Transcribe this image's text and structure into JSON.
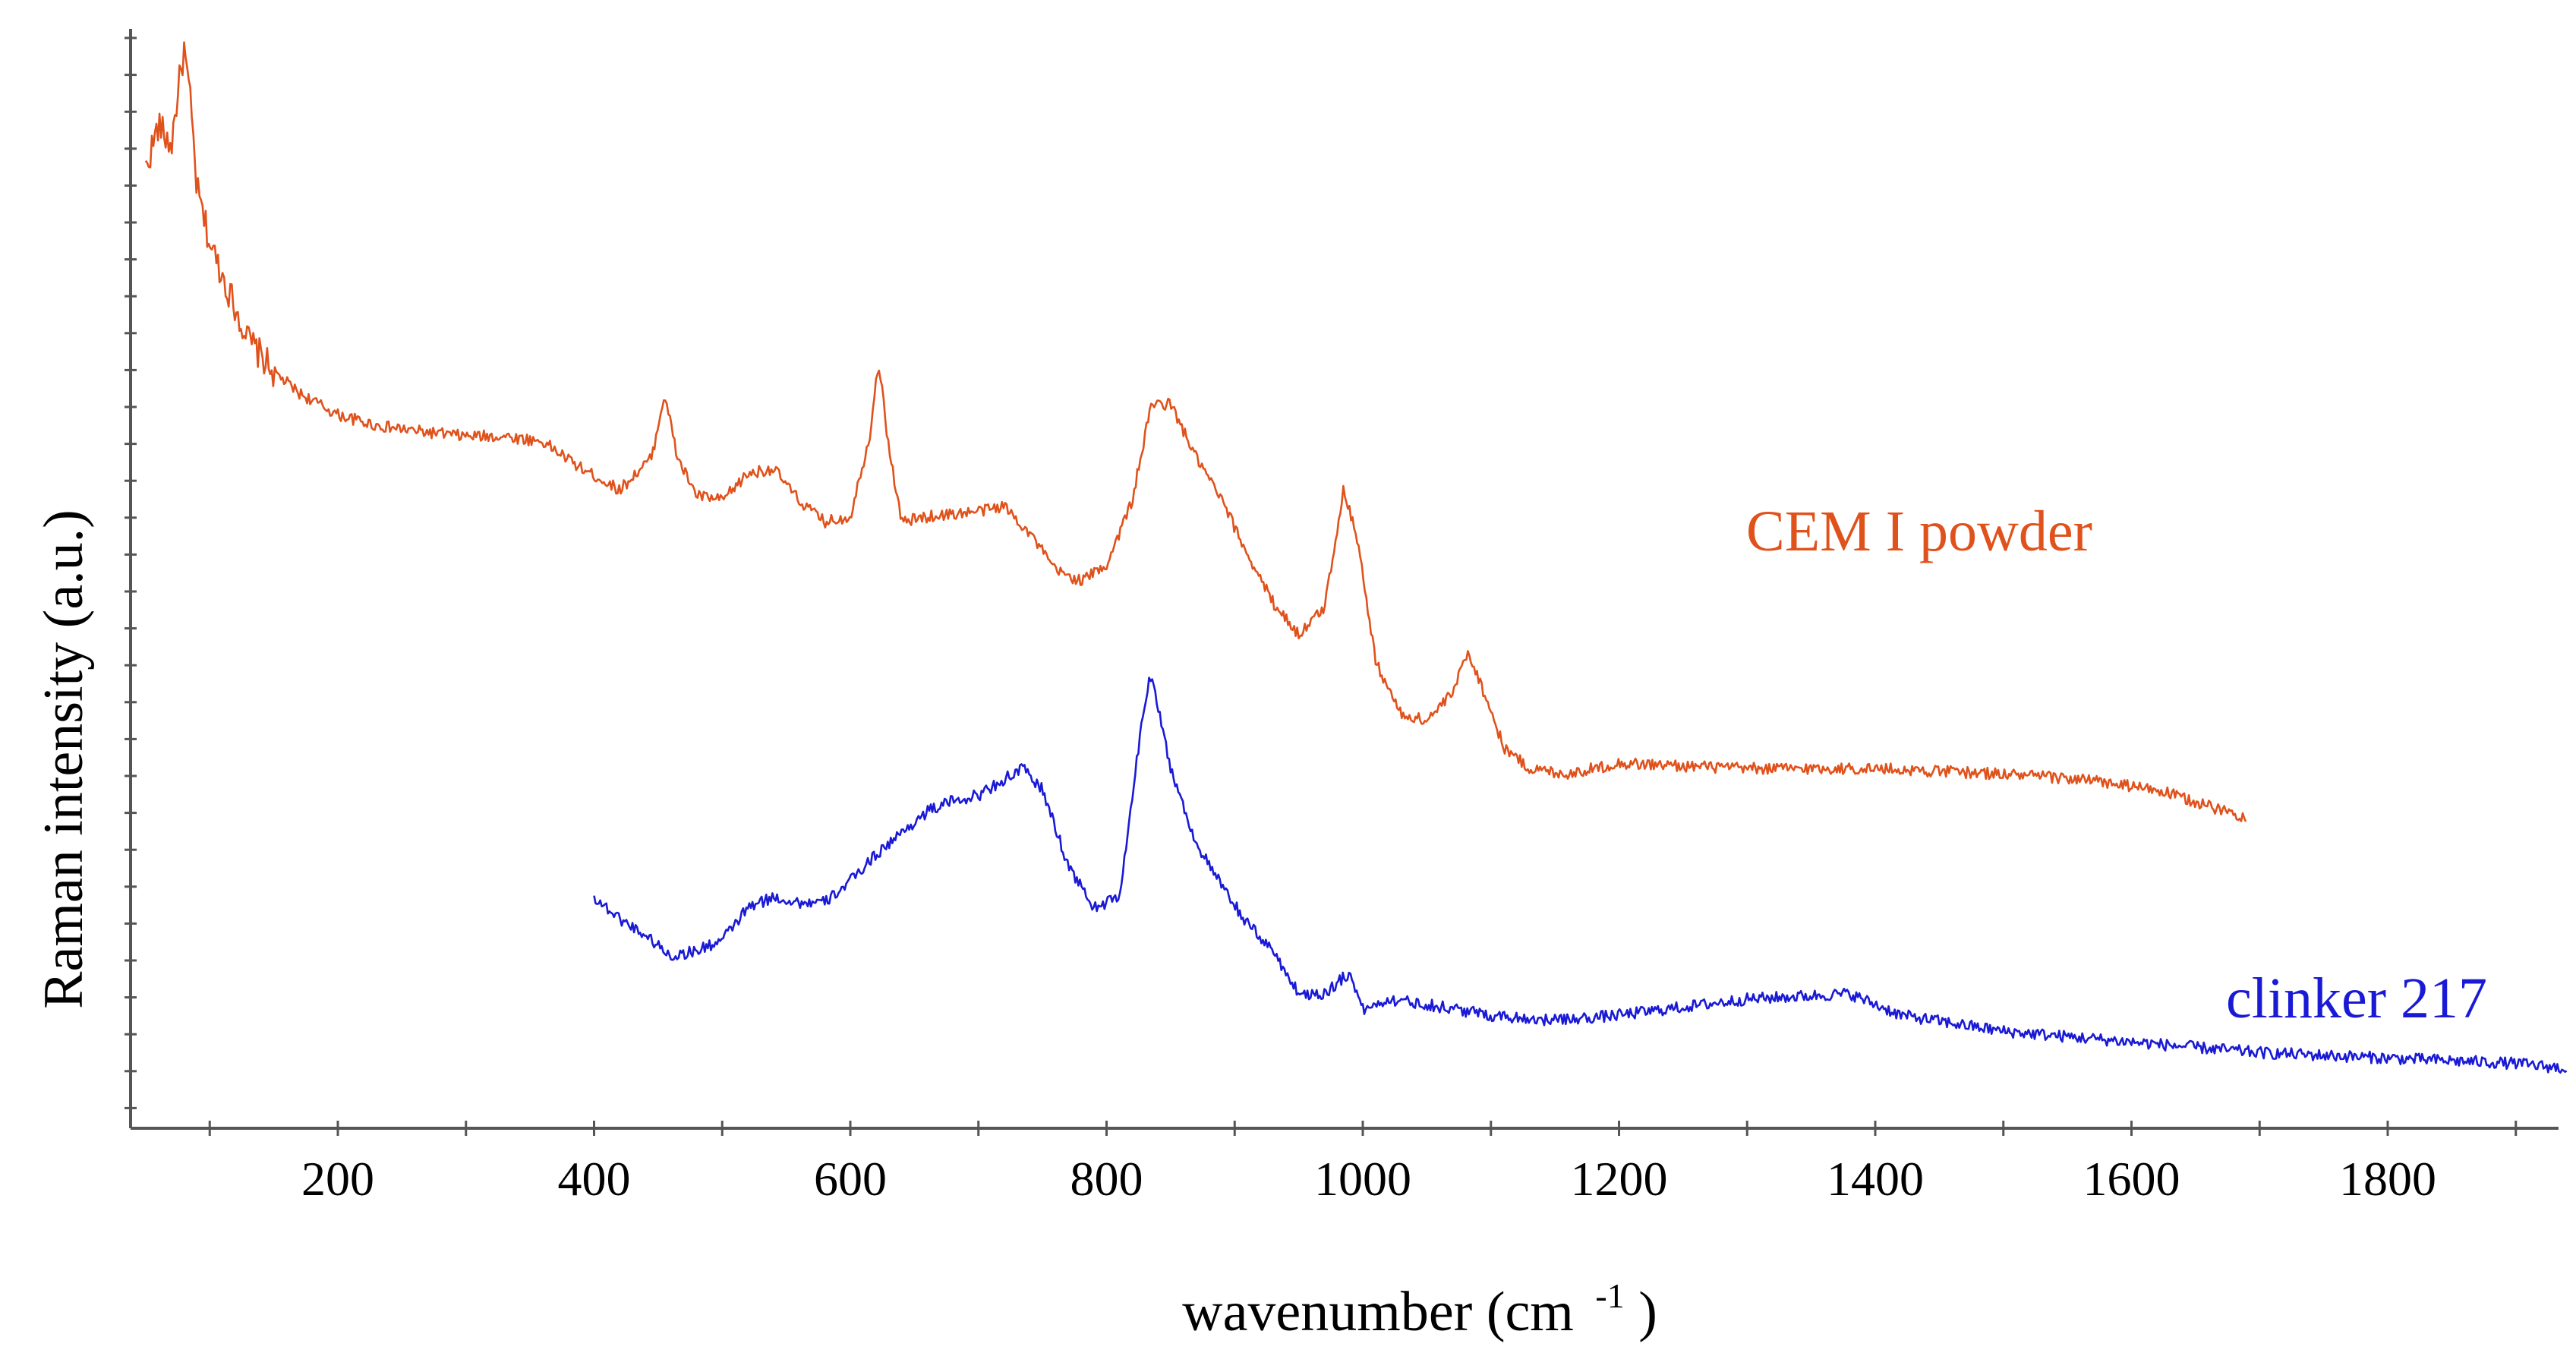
{
  "chart_data": {
    "type": "line",
    "title": "",
    "xlabel_main": "wavenumber (cm",
    "xlabel_sup": "-1",
    "xlabel_close": ")",
    "ylabel": "Raman intensity (a.u.)",
    "xlim": [
      40,
      1950
    ],
    "ylim": [
      0,
      100
    ],
    "x_ticks": [
      200,
      400,
      600,
      800,
      1000,
      1200,
      1400,
      1600,
      1800
    ],
    "x_tick_labels": [
      "200",
      "400",
      "600",
      "800",
      "1000",
      "1200",
      "1400",
      "1600",
      "1800"
    ],
    "y_tick_labels_shown": false,
    "grid": false,
    "series": [
      {
        "name": "CEM I powder",
        "color": "#e0521c",
        "x": [
          50,
          60,
          70,
          75,
          80,
          85,
          90,
          100,
          110,
          120,
          130,
          150,
          170,
          200,
          230,
          260,
          300,
          330,
          360,
          390,
          420,
          445,
          455,
          465,
          480,
          500,
          520,
          540,
          560,
          580,
          600,
          615,
          622,
          630,
          640,
          660,
          700,
          720,
          740,
          760,
          780,
          800,
          820,
          835,
          850,
          870,
          890,
          910,
          930,
          950,
          970,
          985,
          995,
          1010,
          1030,
          1050,
          1070,
          1082,
          1095,
          1110,
          1130,
          1160,
          1200,
          1300,
          1400,
          1500,
          1560,
          1620,
          1660,
          1690
        ],
        "values": [
          87,
          91,
          89,
          94,
          98,
          93,
          85,
          80,
          77,
          74,
          71,
          68,
          66,
          64,
          63,
          62.5,
          62,
          62,
          61.5,
          59,
          57,
          60,
          66,
          60,
          56.5,
          56,
          58.5,
          59,
          56,
          54,
          54.5,
          62,
          69,
          61,
          54,
          54.5,
          55,
          55.5,
          53,
          49.5,
          48.5,
          50,
          56,
          65,
          65,
          60,
          56,
          51,
          46.5,
          43.5,
          46,
          57,
          53,
          41,
          36,
          35.5,
          38,
          42,
          38,
          33,
          31,
          30.5,
          31.5,
          31,
          31,
          30.5,
          30,
          29,
          27.5,
          26.5
        ]
      },
      {
        "name": "clinker 217",
        "color": "#1a1ad6",
        "x": [
          400,
          420,
          440,
          460,
          480,
          500,
          520,
          540,
          560,
          580,
          600,
          620,
          640,
          660,
          680,
          700,
          720,
          735,
          750,
          770,
          790,
          810,
          820,
          828,
          835,
          850,
          860,
          870,
          890,
          910,
          930,
          950,
          970,
          980,
          990,
          1000,
          1020,
          1050,
          1100,
          1150,
          1200,
          1300,
          1380,
          1420,
          1500,
          1600,
          1700,
          1800,
          1900,
          1940
        ],
        "values": [
          19,
          17,
          15.5,
          13.5,
          14,
          15,
          18,
          19,
          18.5,
          18.5,
          20.5,
          23,
          25,
          27,
          28,
          28.5,
          30,
          31,
          29,
          22,
          18,
          19,
          28,
          36,
          40,
          31,
          27.5,
          24,
          20,
          16.5,
          14,
          10,
          10,
          11,
          12,
          8.5,
          9.5,
          9,
          8,
          7.5,
          8,
          9.5,
          10,
          8,
          6.5,
          5.5,
          4.5,
          4,
          3.5,
          3
        ]
      }
    ]
  }
}
